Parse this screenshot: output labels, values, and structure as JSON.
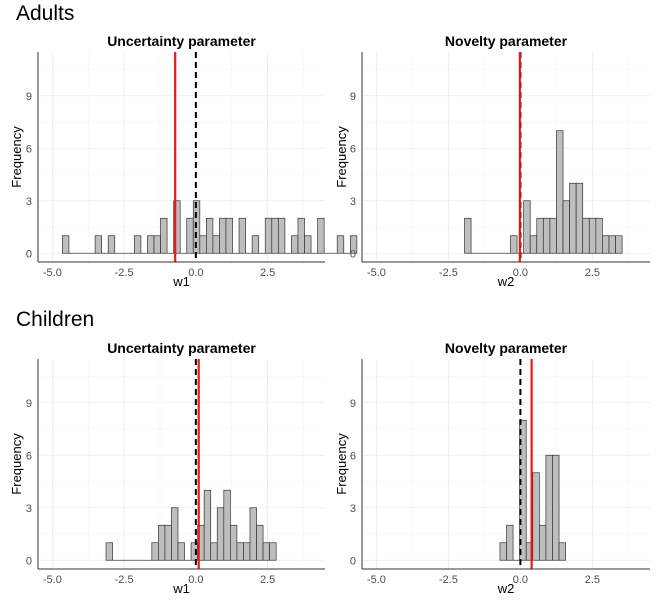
{
  "groups": [
    {
      "title": "Adults"
    },
    {
      "title": "Children"
    }
  ],
  "colors": {
    "bar_fill": "#bebebe",
    "bar_stroke": "#333333",
    "mean_line": "#e41a1c",
    "zero_line": "#000000"
  },
  "chart_data": [
    {
      "type": "bar",
      "group": "Adults",
      "title": "Uncertainty parameter",
      "xlabel": "w1",
      "ylabel": "Frequency",
      "xlim": [
        -5.5,
        4.5
      ],
      "ylim": [
        -0.5,
        11.5
      ],
      "xticks": [
        -5.0,
        -2.5,
        0.0,
        2.5
      ],
      "xtick_labels": [
        "-5.0",
        "-2.5",
        "0.0",
        "2.5"
      ],
      "yticks": [
        0,
        3,
        6,
        9
      ],
      "ytick_labels": [
        "0",
        "3",
        "6",
        "9"
      ],
      "bin_width": 0.228,
      "bin_start": -4.65,
      "counts": [
        1,
        0,
        0,
        0,
        0,
        1,
        0,
        1,
        0,
        0,
        0,
        1,
        0,
        1,
        1,
        2,
        0,
        3,
        0,
        2,
        3,
        1,
        2,
        1,
        2,
        2,
        0,
        2,
        0,
        1,
        0,
        2,
        2,
        2,
        0,
        1,
        2,
        1,
        0,
        2,
        0,
        0,
        1,
        0,
        1
      ],
      "mean": -0.72,
      "reference": 0.0,
      "grid": true
    },
    {
      "type": "bar",
      "group": "Adults",
      "title": "Novelty parameter",
      "xlabel": "w2",
      "ylabel": "Frequency",
      "xlim": [
        -5.5,
        4.5
      ],
      "ylim": [
        -0.5,
        11.5
      ],
      "xticks": [
        -5.0,
        -2.5,
        0.0,
        2.5
      ],
      "xtick_labels": [
        "-5.0",
        "-2.5",
        "0.0",
        "2.5"
      ],
      "yticks": [
        0,
        3,
        6,
        9
      ],
      "ytick_labels": [
        "0",
        "3",
        "6",
        "9"
      ],
      "bin_width": 0.228,
      "bin_start": -1.94,
      "counts": [
        2,
        0,
        0,
        0,
        0,
        0,
        0,
        1,
        0,
        3,
        1,
        2,
        2,
        2,
        7,
        3,
        4,
        4,
        2,
        2,
        2,
        1,
        1,
        1
      ],
      "mean": -0.02,
      "reference": 0.0,
      "grid": true
    },
    {
      "type": "bar",
      "group": "Children",
      "title": "Uncertainty parameter",
      "xlabel": "w1",
      "ylabel": "Frequency",
      "xlim": [
        -5.5,
        4.5
      ],
      "ylim": [
        -0.5,
        11.5
      ],
      "xticks": [
        -5.0,
        -2.5,
        0.0,
        2.5
      ],
      "xtick_labels": [
        "-5.0",
        "-2.5",
        "0.0",
        "2.5"
      ],
      "yticks": [
        0,
        3,
        6,
        9
      ],
      "ytick_labels": [
        "0",
        "3",
        "6",
        "9"
      ],
      "bin_width": 0.228,
      "bin_start": -3.13,
      "counts": [
        1,
        0,
        0,
        0,
        0,
        0,
        0,
        1,
        2,
        2,
        3,
        1,
        0,
        1,
        2,
        4,
        1,
        3,
        4,
        2,
        1,
        1,
        3,
        2,
        1,
        1
      ],
      "mean": 0.1,
      "reference": 0.0,
      "grid": true
    },
    {
      "type": "bar",
      "group": "Children",
      "title": "Novelty parameter",
      "xlabel": "w2",
      "ylabel": "Frequency",
      "xlim": [
        -5.5,
        4.5
      ],
      "ylim": [
        -0.5,
        11.5
      ],
      "xticks": [
        -5.0,
        -2.5,
        0.0,
        2.5
      ],
      "xtick_labels": [
        "-5.0",
        "-2.5",
        "0.0",
        "2.5"
      ],
      "yticks": [
        0,
        3,
        6,
        9
      ],
      "ytick_labels": [
        "0",
        "3",
        "6",
        "9"
      ],
      "bin_width": 0.228,
      "bin_start": -0.71,
      "counts": [
        1,
        2,
        0,
        8,
        1,
        5,
        2,
        6,
        6,
        1
      ],
      "mean": 0.39,
      "reference": 0.0,
      "grid": true
    }
  ]
}
